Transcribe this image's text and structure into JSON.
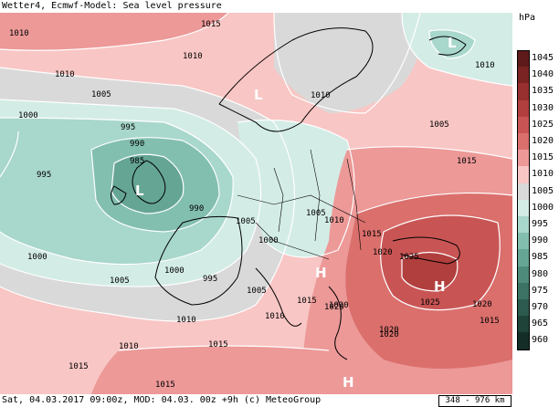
{
  "header": {
    "title": "Wetter4, Ecmwf-Model: Sea level pressure"
  },
  "footer": {
    "info": "Sat, 04.03.2017 09:00z, MOD: 04.03. 00z +9h (c) MeteoGroup",
    "scale": "348 - 976 km"
  },
  "legend": {
    "unit": "hPa",
    "levels": [
      {
        "value": "1045",
        "color": "#5e1a1a"
      },
      {
        "value": "1040",
        "color": "#7a2323"
      },
      {
        "value": "1035",
        "color": "#97302e"
      },
      {
        "value": "1030",
        "color": "#b13f3e"
      },
      {
        "value": "1025",
        "color": "#c85554"
      },
      {
        "value": "1020",
        "color": "#da6f6c"
      },
      {
        "value": "1015",
        "color": "#ec9998"
      },
      {
        "value": "1010",
        "color": "#f8c6c4"
      },
      {
        "value": "1005",
        "color": "#d9d9d9"
      },
      {
        "value": "1000",
        "color": "#d3ece6"
      },
      {
        "value": "995",
        "color": "#a8d7cb"
      },
      {
        "value": "990",
        "color": "#82bfaf"
      },
      {
        "value": "985",
        "color": "#65a594"
      },
      {
        "value": "980",
        "color": "#4e8b7b"
      },
      {
        "value": "975",
        "color": "#3c7264"
      },
      {
        "value": "970",
        "color": "#2c5a4e"
      },
      {
        "value": "965",
        "color": "#1f4239"
      },
      {
        "value": "960",
        "color": "#142e27"
      }
    ]
  },
  "map": {
    "contour_labels": [
      "1015",
      "1010",
      "1010",
      "1005",
      "1010",
      "1000",
      "995",
      "990",
      "985",
      "995",
      "990",
      "1000",
      "1005",
      "995",
      "1000",
      "1005",
      "1010",
      "1005",
      "1010",
      "1005",
      "1015",
      "1000",
      "1005",
      "1010",
      "1015",
      "1020",
      "1025",
      "1020",
      "1015",
      "1020",
      "1025",
      "1020",
      "1015",
      "1010",
      "1015",
      "1010",
      "1015",
      "1020",
      "1020",
      "1010",
      "1015"
    ],
    "pressure_centres": [
      "L",
      "L",
      "L",
      "H",
      "H",
      "H"
    ]
  }
}
